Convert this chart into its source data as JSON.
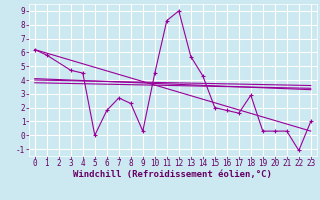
{
  "xlabel": "Windchill (Refroidissement éolien,°C)",
  "background_color": "#cce8f0",
  "grid_color": "#ffffff",
  "line_color": "#990099",
  "xlim": [
    -0.5,
    23.5
  ],
  "ylim": [
    -1.5,
    9.5
  ],
  "xticks": [
    0,
    1,
    2,
    3,
    4,
    5,
    6,
    7,
    8,
    9,
    10,
    11,
    12,
    13,
    14,
    15,
    16,
    17,
    18,
    19,
    20,
    21,
    22,
    23
  ],
  "yticks": [
    -1,
    0,
    1,
    2,
    3,
    4,
    5,
    6,
    7,
    8,
    9
  ],
  "series": [
    [
      0,
      6.2
    ],
    [
      1,
      5.8
    ],
    [
      3,
      4.7
    ],
    [
      4,
      4.5
    ],
    [
      5,
      0.0
    ],
    [
      6,
      1.8
    ],
    [
      7,
      2.7
    ],
    [
      8,
      2.3
    ],
    [
      9,
      0.3
    ],
    [
      10,
      4.5
    ],
    [
      11,
      8.3
    ],
    [
      12,
      9.0
    ],
    [
      13,
      5.7
    ],
    [
      14,
      4.3
    ],
    [
      15,
      2.0
    ],
    [
      16,
      1.8
    ],
    [
      17,
      1.6
    ],
    [
      18,
      2.9
    ],
    [
      19,
      0.3
    ],
    [
      20,
      0.3
    ],
    [
      21,
      0.3
    ],
    [
      22,
      -1.1
    ],
    [
      23,
      1.0
    ]
  ],
  "trend_lines": [
    {
      "x": [
        0,
        23
      ],
      "y": [
        6.2,
        0.3
      ]
    },
    {
      "x": [
        0,
        23
      ],
      "y": [
        4.1,
        3.3
      ]
    },
    {
      "x": [
        0,
        23
      ],
      "y": [
        4.0,
        3.6
      ]
    },
    {
      "x": [
        0,
        23
      ],
      "y": [
        3.8,
        3.4
      ]
    }
  ],
  "tick_fontsize": 5.5,
  "label_fontsize": 6.5
}
